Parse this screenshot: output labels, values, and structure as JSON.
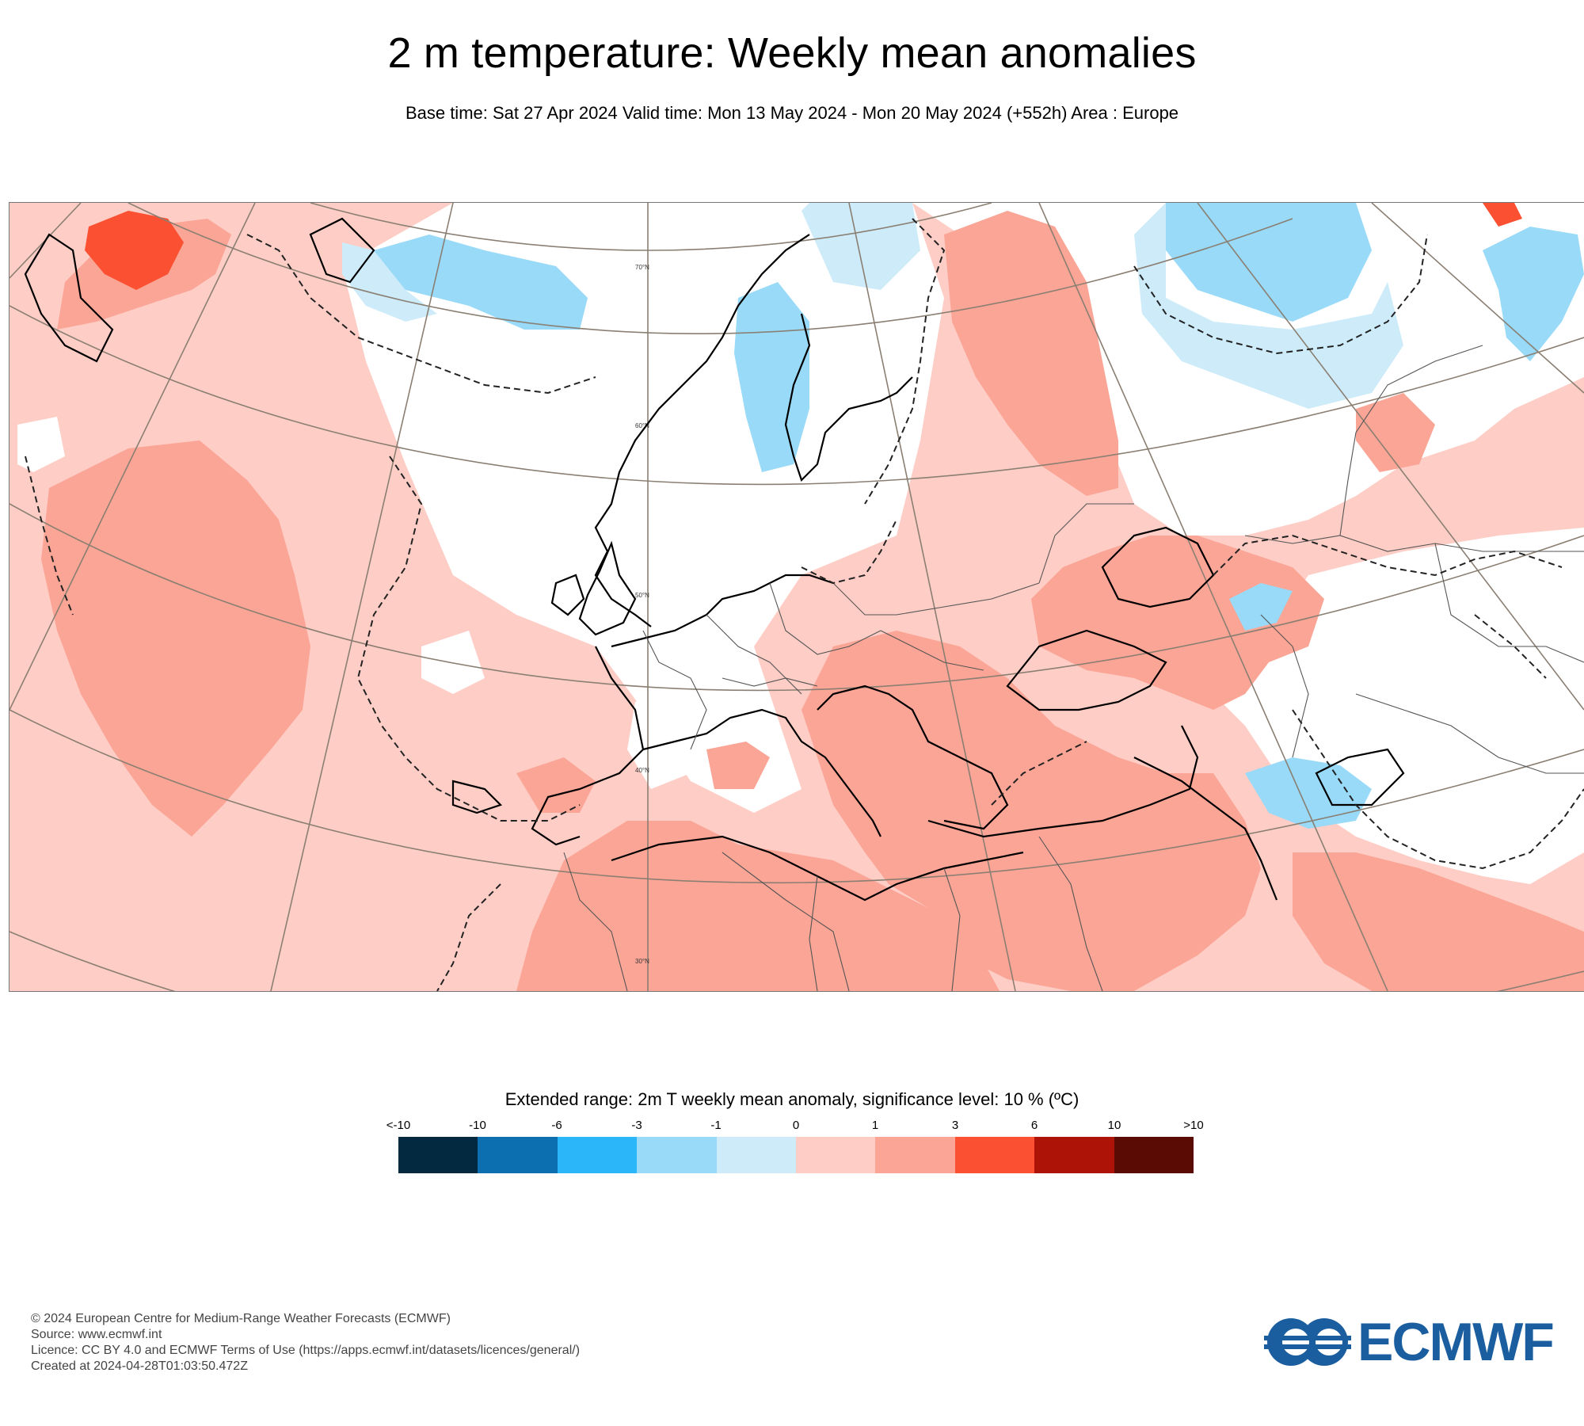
{
  "header": {
    "title": "2 m temperature: Weekly mean anomalies",
    "subtitle": "Base time: Sat 27 Apr 2024 Valid time: Mon 13 May 2024 - Mon 20 May 2024 (+552h) Area : Europe"
  },
  "map": {
    "region": "Europe",
    "lat_labels": [
      "70°N",
      "60°N",
      "50°N",
      "40°N",
      "30°N"
    ],
    "significance_contour": "dashed black line"
  },
  "legend": {
    "title": "Extended range: 2m T weekly mean anomaly, significance level: 10 % (ºC)",
    "ticks": [
      "<-10",
      "-10",
      "-6",
      "-3",
      "-1",
      "0",
      "1",
      "3",
      "6",
      "10",
      ">10"
    ],
    "colors": [
      "#032940",
      "#0b6fb0",
      "#2ab6f8",
      "#98daf8",
      "#cdebf9",
      "#fecdc6",
      "#fba596",
      "#fb5031",
      "#ad1407",
      "#5a0c04"
    ]
  },
  "footer": {
    "copyright": "© 2024 European Centre for Medium-Range Weather Forecasts (ECMWF)",
    "source": "Source: www.ecmwf.int",
    "licence": "Licence: CC BY 4.0 and ECMWF Terms of Use (https://apps.ecmwf.int/datasets/licences/general/)",
    "created": "Created at 2024-04-28T01:03:50.472Z"
  },
  "logo": {
    "text": "ECMWF",
    "color": "#1a5e9f"
  }
}
